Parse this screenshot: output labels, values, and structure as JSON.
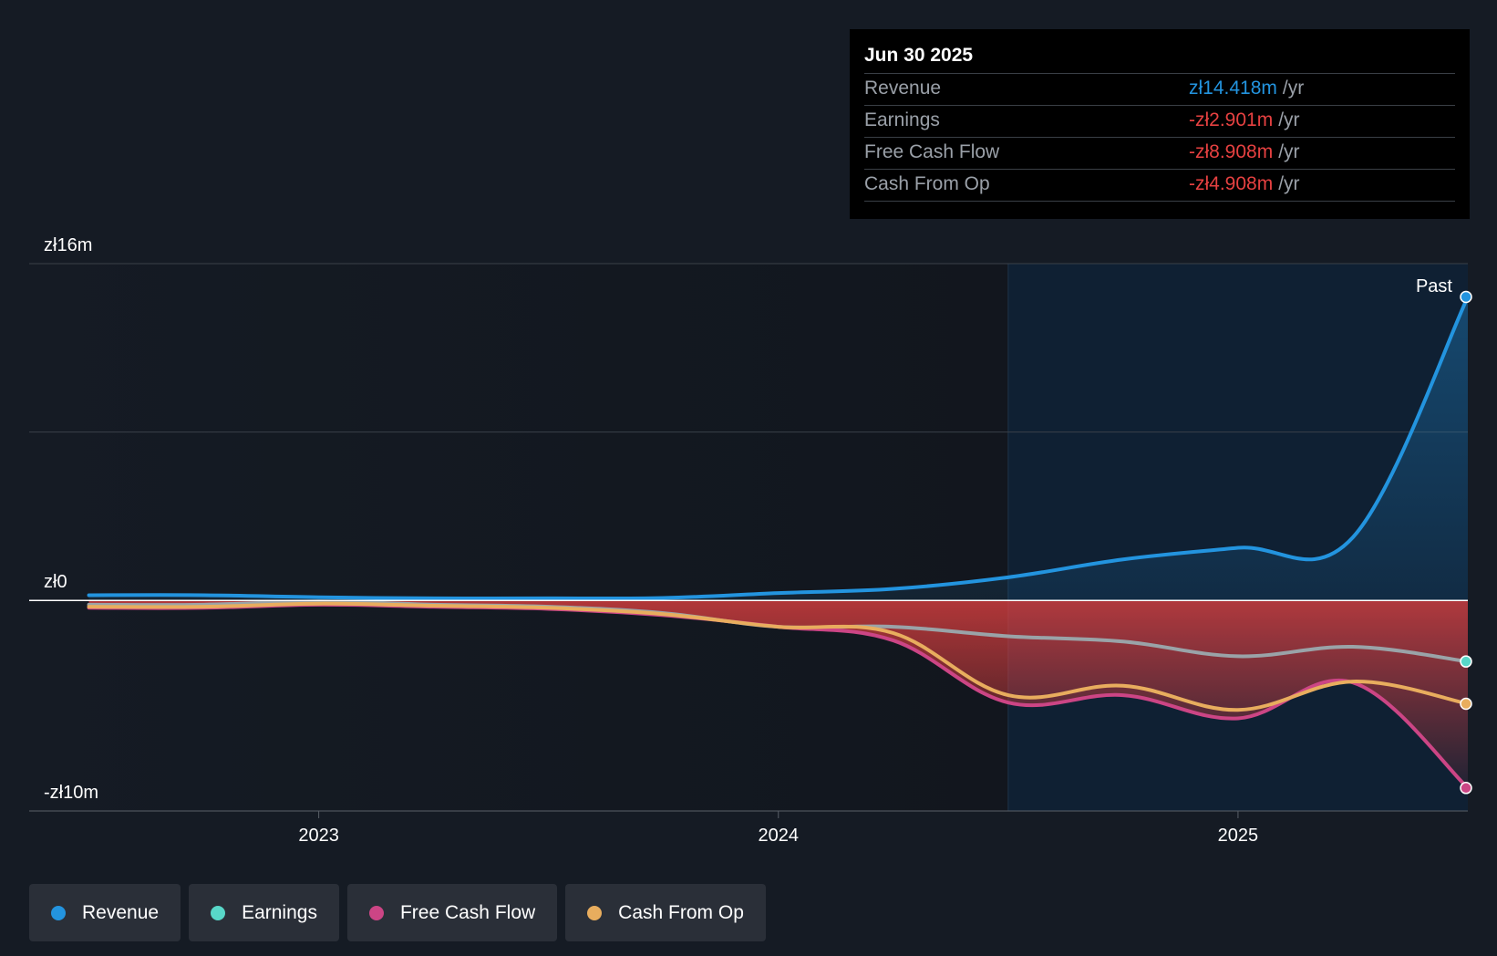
{
  "tooltip": {
    "date": "Jun 30 2025",
    "rows": [
      {
        "label": "Revenue",
        "value": "zł14.418m",
        "unit": "/yr",
        "color": "#2394df"
      },
      {
        "label": "Earnings",
        "value": "-zł2.901m",
        "unit": "/yr",
        "color": "#e64141"
      },
      {
        "label": "Free Cash Flow",
        "value": "-zł8.908m",
        "unit": "/yr",
        "color": "#e64141"
      },
      {
        "label": "Cash From Op",
        "value": "-zł4.908m",
        "unit": "/yr",
        "color": "#e64141"
      }
    ]
  },
  "chart_data": {
    "type": "line",
    "ylim": [
      -10,
      16
    ],
    "y_tick_labels": [
      {
        "value": 16,
        "label": "zł16m"
      },
      {
        "value": 0,
        "label": "zł0"
      },
      {
        "value": -10,
        "label": "-zł10m"
      }
    ],
    "x_range": [
      2022.37,
      2025.5
    ],
    "x_ticks": [
      {
        "value": 2023.0,
        "label": "2023"
      },
      {
        "value": 2024.0,
        "label": "2024"
      },
      {
        "value": 2025.0,
        "label": "2025"
      }
    ],
    "past_start": 2024.5,
    "past_label": "Past",
    "series": [
      {
        "name": "Revenue",
        "color": "#2394df",
        "points": [
          [
            2022.5,
            0.25
          ],
          [
            2022.75,
            0.25
          ],
          [
            2023.0,
            0.15
          ],
          [
            2023.25,
            0.1
          ],
          [
            2023.5,
            0.1
          ],
          [
            2023.75,
            0.12
          ],
          [
            2024.0,
            0.35
          ],
          [
            2024.25,
            0.55
          ],
          [
            2024.5,
            1.1
          ],
          [
            2024.75,
            1.95
          ],
          [
            2025.0,
            2.5
          ],
          [
            2025.25,
            3.0
          ],
          [
            2025.5,
            14.418
          ]
        ]
      },
      {
        "name": "Earnings",
        "color": "#58d7c8",
        "points": [
          [
            2022.5,
            -0.2
          ],
          [
            2022.75,
            -0.2
          ],
          [
            2023.0,
            -0.05
          ],
          [
            2023.25,
            -0.2
          ],
          [
            2023.5,
            -0.3
          ],
          [
            2023.75,
            -0.6
          ],
          [
            2024.0,
            -1.25
          ],
          [
            2024.25,
            -1.25
          ],
          [
            2024.5,
            -1.7
          ],
          [
            2024.75,
            -1.95
          ],
          [
            2025.0,
            -2.65
          ],
          [
            2025.25,
            -2.2
          ],
          [
            2025.5,
            -2.901
          ]
        ]
      },
      {
        "name": "Free Cash Flow",
        "color": "#cc4585",
        "points": [
          [
            2022.5,
            -0.35
          ],
          [
            2022.75,
            -0.35
          ],
          [
            2023.0,
            -0.2
          ],
          [
            2023.25,
            -0.3
          ],
          [
            2023.5,
            -0.4
          ],
          [
            2023.75,
            -0.7
          ],
          [
            2024.0,
            -1.25
          ],
          [
            2024.25,
            -1.9
          ],
          [
            2024.5,
            -4.85
          ],
          [
            2024.75,
            -4.5
          ],
          [
            2025.0,
            -5.6
          ],
          [
            2025.25,
            -3.9
          ],
          [
            2025.5,
            -8.908
          ]
        ]
      },
      {
        "name": "Cash From Op",
        "color": "#e8ad5e",
        "points": [
          [
            2022.5,
            -0.3
          ],
          [
            2022.75,
            -0.3
          ],
          [
            2023.0,
            -0.15
          ],
          [
            2023.25,
            -0.25
          ],
          [
            2023.5,
            -0.35
          ],
          [
            2023.75,
            -0.65
          ],
          [
            2024.0,
            -1.25
          ],
          [
            2024.25,
            -1.55
          ],
          [
            2024.5,
            -4.5
          ],
          [
            2024.75,
            -4.05
          ],
          [
            2025.0,
            -5.2
          ],
          [
            2025.25,
            -3.85
          ],
          [
            2025.5,
            -4.908
          ]
        ]
      }
    ]
  },
  "legend": [
    {
      "label": "Revenue",
      "color": "#2394df"
    },
    {
      "label": "Earnings",
      "color": "#58d7c8"
    },
    {
      "label": "Free Cash Flow",
      "color": "#cc4585"
    },
    {
      "label": "Cash From Op",
      "color": "#e8ad5e"
    }
  ]
}
